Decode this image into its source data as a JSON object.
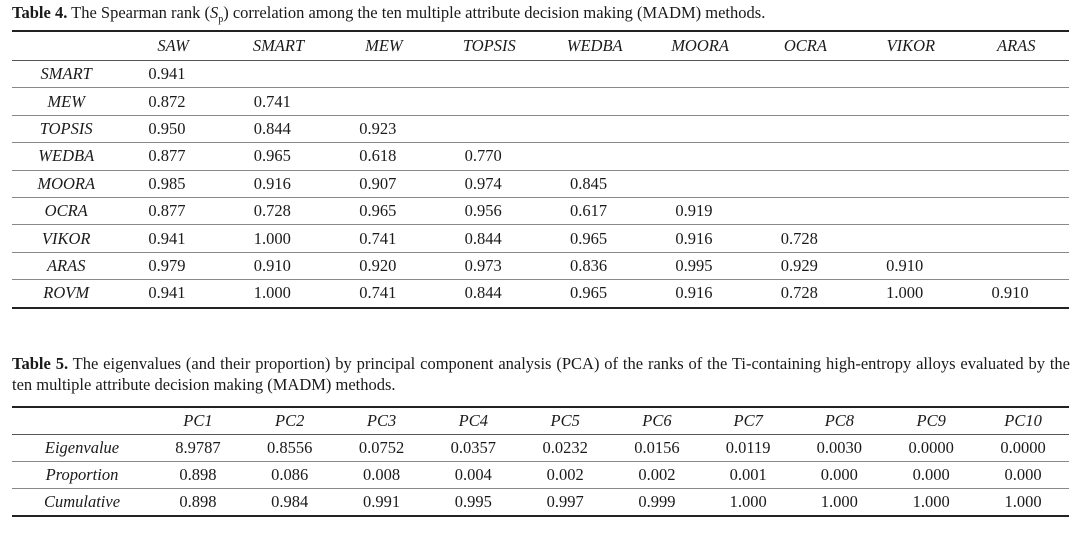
{
  "table4": {
    "label": "Table 4.",
    "caption_pre": " The Spearman rank (",
    "caption_sym": "S",
    "caption_sub": "p",
    "caption_post": ") correlation among the ten multiple attribute decision making (MADM) methods.",
    "columns": [
      "SAW",
      "SMART",
      "MEW",
      "TOPSIS",
      "WEDBA",
      "MOORA",
      "OCRA",
      "VIKOR",
      "ARAS"
    ],
    "rows": [
      {
        "name": "SMART",
        "values": [
          "0.941",
          "",
          "",
          "",
          "",
          "",
          "",
          "",
          ""
        ]
      },
      {
        "name": "MEW",
        "values": [
          "0.872",
          "0.741",
          "",
          "",
          "",
          "",
          "",
          "",
          ""
        ]
      },
      {
        "name": "TOPSIS",
        "values": [
          "0.950",
          "0.844",
          "0.923",
          "",
          "",
          "",
          "",
          "",
          ""
        ]
      },
      {
        "name": "WEDBA",
        "values": [
          "0.877",
          "0.965",
          "0.618",
          "0.770",
          "",
          "",
          "",
          "",
          ""
        ]
      },
      {
        "name": "MOORA",
        "values": [
          "0.985",
          "0.916",
          "0.907",
          "0.974",
          "0.845",
          "",
          "",
          "",
          ""
        ]
      },
      {
        "name": "OCRA",
        "values": [
          "0.877",
          "0.728",
          "0.965",
          "0.956",
          "0.617",
          "0.919",
          "",
          "",
          ""
        ]
      },
      {
        "name": "VIKOR",
        "values": [
          "0.941",
          "1.000",
          "0.741",
          "0.844",
          "0.965",
          "0.916",
          "0.728",
          "",
          ""
        ]
      },
      {
        "name": "ARAS",
        "values": [
          "0.979",
          "0.910",
          "0.920",
          "0.973",
          "0.836",
          "0.995",
          "0.929",
          "0.910",
          ""
        ]
      },
      {
        "name": "ROVM",
        "values": [
          "0.941",
          "1.000",
          "0.741",
          "0.844",
          "0.965",
          "0.916",
          "0.728",
          "1.000",
          "0.910"
        ]
      }
    ]
  },
  "table5": {
    "label": "Table 5.",
    "caption_text": " The eigenvalues (and their proportion) by principal component analysis (PCA) of the ranks of the Ti-containing high-entropy alloys evaluated by the ten multiple attribute decision making (MADM) methods.",
    "columns": [
      "PC1",
      "PC2",
      "PC3",
      "PC4",
      "PC5",
      "PC6",
      "PC7",
      "PC8",
      "PC9",
      "PC10"
    ],
    "rows": [
      {
        "name": "Eigenvalue",
        "values": [
          "8.9787",
          "0.8556",
          "0.0752",
          "0.0357",
          "0.0232",
          "0.0156",
          "0.0119",
          "0.0030",
          "0.0000",
          "0.0000"
        ]
      },
      {
        "name": "Proportion",
        "values": [
          "0.898",
          "0.086",
          "0.008",
          "0.004",
          "0.002",
          "0.002",
          "0.001",
          "0.000",
          "0.000",
          "0.000"
        ]
      },
      {
        "name": "Cumulative",
        "values": [
          "0.898",
          "0.984",
          "0.991",
          "0.995",
          "0.997",
          "0.999",
          "1.000",
          "1.000",
          "1.000",
          "1.000"
        ]
      }
    ]
  }
}
